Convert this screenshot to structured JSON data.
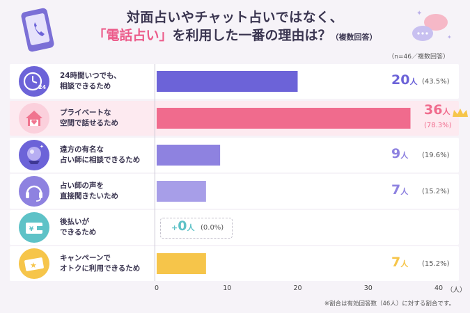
{
  "title": {
    "line1": "対面占いやチャット占いではなく、",
    "line2_highlight": "「電話占い」",
    "line2_rest": "を利用した一番の理由は？",
    "line2_note": "（複数回答）"
  },
  "sample_note": "（n=46／複数回答）",
  "footnote": "※割合は有効回答数（46人）に対する割合です。",
  "unit": "人",
  "colors": {
    "primary": "#6c63d8",
    "highlight": "#f06b8d",
    "mid": "#8e82e0",
    "light": "#a79ee8",
    "zero": "#5ec2c7",
    "gold": "#f6c54a"
  },
  "icons": [
    "clock-24-icon",
    "house-heart-icon",
    "crystal-ball-icon",
    "headset-icon",
    "wallet-yen-icon",
    "ticket-star-icon"
  ],
  "chart_data": {
    "type": "bar",
    "orientation": "horizontal",
    "categories": [
      "24時間いつでも、\n相談できるため",
      "プライベートな\n空間で話せるため",
      "遠方の有名な\n占い師に相談できるため",
      "占い師の声を\n直接聞きたいため",
      "後払いが\nできるため",
      "キャンペーンで\nオトクに利用できるため"
    ],
    "values": [
      20,
      36,
      9,
      7,
      0,
      7
    ],
    "percents": [
      "(43.5%)",
      "(78.3%)",
      "(19.6%)",
      "(15.2%)",
      "(0.0%)",
      "(15.2%)"
    ],
    "xlim": [
      0,
      40
    ],
    "xticks": [
      0,
      10,
      20,
      30,
      40
    ],
    "xunit": "（人）",
    "grid": false
  }
}
